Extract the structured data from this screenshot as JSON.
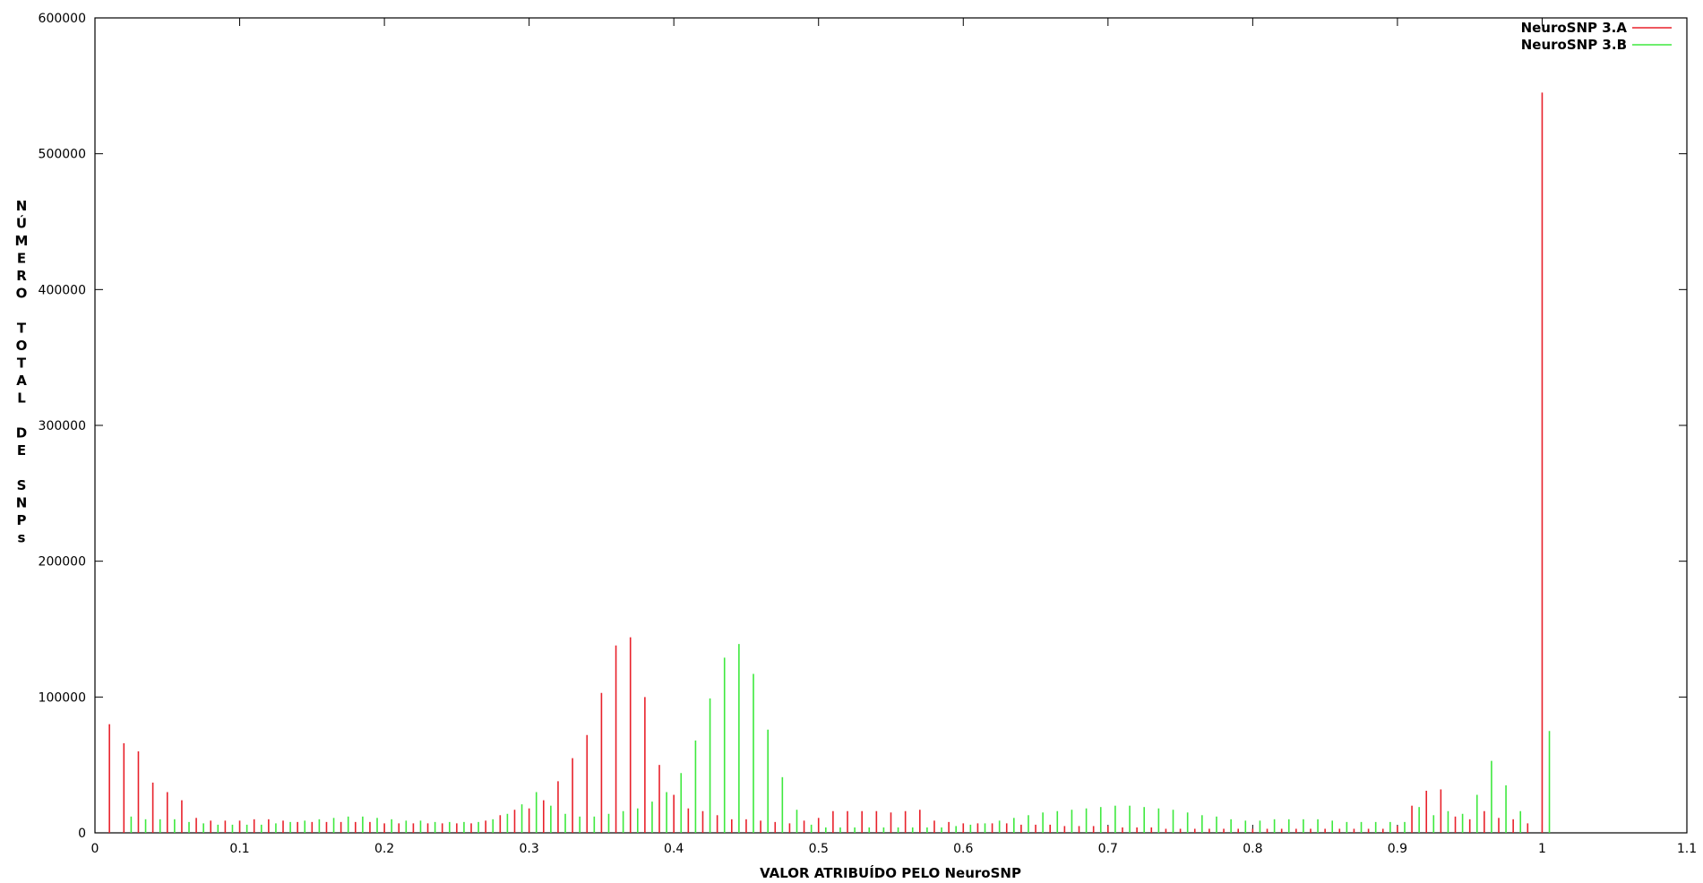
{
  "chart_data": {
    "type": "bar",
    "xlabel": "VALOR ATRIBUÍDO PELO NeuroSNP",
    "ylabel": "NÚMERO TOTAL DE SNPs",
    "xlim": [
      0,
      1.1
    ],
    "ylim": [
      0,
      600000
    ],
    "x_ticks": [
      "0",
      "0.1",
      "0.2",
      "0.3",
      "0.4",
      "0.5",
      "0.6",
      "0.7",
      "0.8",
      "0.9",
      "1",
      "1.1"
    ],
    "y_ticks": [
      "0",
      "100000",
      "200000",
      "300000",
      "400000",
      "500000",
      "600000"
    ],
    "legend_position": "top-right",
    "grid": false,
    "series": [
      {
        "name": "NeuroSNP 3.A",
        "color": "#e8212b",
        "x": [
          0.01,
          0.02,
          0.03,
          0.04,
          0.05,
          0.06,
          0.07,
          0.08,
          0.09,
          0.1,
          0.11,
          0.12,
          0.13,
          0.14,
          0.15,
          0.16,
          0.17,
          0.18,
          0.19,
          0.2,
          0.21,
          0.22,
          0.23,
          0.24,
          0.25,
          0.26,
          0.27,
          0.28,
          0.29,
          0.3,
          0.31,
          0.32,
          0.33,
          0.34,
          0.35,
          0.36,
          0.37,
          0.38,
          0.39,
          0.4,
          0.41,
          0.42,
          0.43,
          0.44,
          0.45,
          0.46,
          0.47,
          0.48,
          0.49,
          0.5,
          0.51,
          0.52,
          0.53,
          0.54,
          0.55,
          0.56,
          0.57,
          0.58,
          0.59,
          0.6,
          0.61,
          0.62,
          0.63,
          0.64,
          0.65,
          0.66,
          0.67,
          0.68,
          0.69,
          0.7,
          0.71,
          0.72,
          0.73,
          0.74,
          0.75,
          0.76,
          0.77,
          0.78,
          0.79,
          0.8,
          0.81,
          0.82,
          0.83,
          0.84,
          0.85,
          0.86,
          0.87,
          0.88,
          0.89,
          0.9,
          0.91,
          0.92,
          0.93,
          0.94,
          0.95,
          0.96,
          0.97,
          0.98,
          0.99,
          1.0
        ],
        "values": [
          80000,
          66000,
          60000,
          37000,
          30000,
          24000,
          11000,
          9000,
          9000,
          9000,
          10000,
          10000,
          9000,
          8000,
          8000,
          8000,
          8000,
          8000,
          8000,
          7000,
          7000,
          7000,
          7000,
          7000,
          7000,
          7000,
          9000,
          13000,
          17000,
          18000,
          24000,
          38000,
          55000,
          72000,
          103000,
          138000,
          144000,
          100000,
          50000,
          28000,
          18000,
          16000,
          13000,
          10000,
          10000,
          9000,
          8000,
          7000,
          9000,
          11000,
          16000,
          16000,
          16000,
          16000,
          15000,
          16000,
          17000,
          9000,
          8000,
          7000,
          7000,
          7000,
          7000,
          6000,
          6000,
          6000,
          5000,
          5000,
          5000,
          5000,
          4000,
          4000,
          4000,
          3000,
          3000,
          3000,
          3000,
          3000,
          3000,
          3000,
          3000,
          3000,
          3000,
          3000,
          3000,
          3000,
          3000,
          3000,
          3000,
          5000,
          20000,
          31000,
          32000,
          12000,
          10000,
          16000,
          11000,
          10000,
          7000,
          545000
        ]
      },
      {
        "name": "NeuroSNP 3.B",
        "color": "#3ee83e",
        "x": [
          0.015,
          0.025,
          0.035,
          0.045,
          0.055,
          0.065,
          0.075,
          0.085,
          0.095,
          0.105,
          0.115,
          0.125,
          0.135,
          0.145,
          0.155,
          0.165,
          0.175,
          0.185,
          0.195,
          0.205,
          0.215,
          0.225,
          0.235,
          0.245,
          0.255,
          0.265,
          0.275,
          0.285,
          0.295,
          0.305,
          0.315,
          0.325,
          0.335,
          0.345,
          0.355,
          0.365,
          0.375,
          0.385,
          0.395,
          0.405,
          0.415,
          0.425,
          0.435,
          0.445,
          0.455,
          0.465,
          0.475,
          0.485,
          0.495,
          0.505,
          0.515,
          0.525,
          0.535,
          0.545,
          0.555,
          0.565,
          0.575,
          0.585,
          0.595,
          0.605,
          0.615,
          0.625,
          0.635,
          0.645,
          0.655,
          0.665,
          0.675,
          0.685,
          0.695,
          0.705,
          0.715,
          0.725,
          0.735,
          0.745,
          0.755,
          0.765,
          0.775,
          0.785,
          0.795,
          0.805,
          0.815,
          0.825,
          0.835,
          0.845,
          0.855,
          0.865,
          0.875,
          0.885,
          0.895,
          0.905,
          0.915,
          0.925,
          0.935,
          0.945,
          0.955,
          0.965,
          0.975,
          0.985,
          0.995,
          1.005
        ],
        "values": [
          0,
          12000,
          10000,
          10000,
          10000,
          8000,
          7000,
          6000,
          6000,
          6000,
          6000,
          7000,
          8000,
          9000,
          10000,
          11000,
          12000,
          12000,
          11000,
          10000,
          9000,
          9000,
          8000,
          8000,
          8000,
          8000,
          10000,
          14000,
          21000,
          30000,
          20000,
          14000,
          12000,
          12000,
          14000,
          16000,
          18000,
          23000,
          30000,
          44000,
          68000,
          99000,
          129000,
          139000,
          117000,
          76000,
          41000,
          17000,
          6000,
          4000,
          4000,
          4000,
          4000,
          4000,
          4000,
          4000,
          4000,
          4000,
          5000,
          6000,
          7000,
          9000,
          11000,
          13000,
          15000,
          16000,
          17000,
          18000,
          19000,
          20000,
          20000,
          19000,
          18000,
          17000,
          15000,
          13000,
          12000,
          10000,
          9000,
          9000,
          10000,
          10000,
          10000,
          10000,
          9000,
          8000,
          8000,
          8000,
          8000,
          8000,
          19000,
          13000,
          16000,
          14000,
          28000,
          53000,
          35000,
          16000,
          0,
          75000
        ]
      }
    ]
  }
}
